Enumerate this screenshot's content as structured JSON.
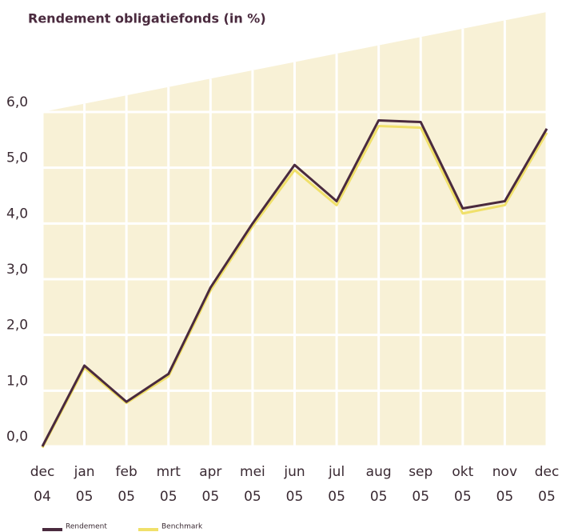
{
  "chart_data": {
    "type": "line",
    "title": "Rendement obligatiefonds (in %)",
    "categories": [
      [
        "dec",
        "04"
      ],
      [
        "jan",
        "05"
      ],
      [
        "feb",
        "05"
      ],
      [
        "mrt",
        "05"
      ],
      [
        "apr",
        "05"
      ],
      [
        "mei",
        "05"
      ],
      [
        "jun",
        "05"
      ],
      [
        "jul",
        "05"
      ],
      [
        "aug",
        "05"
      ],
      [
        "sep",
        "05"
      ],
      [
        "okt",
        "05"
      ],
      [
        "nov",
        "05"
      ],
      [
        "dec",
        "05"
      ]
    ],
    "series": [
      {
        "name": "Benchmark",
        "color": "#f0e06a",
        "values": [
          0,
          1.43,
          0.8,
          1.28,
          2.82,
          3.97,
          4.98,
          4.35,
          5.77,
          5.74,
          4.2,
          4.35,
          5.65
        ]
      },
      {
        "name": "Rendement",
        "color": "#4a2a3e",
        "values": [
          0,
          1.45,
          0.8,
          1.3,
          2.85,
          4.0,
          5.05,
          4.4,
          5.85,
          5.82,
          4.27,
          4.4,
          5.7
        ]
      }
    ],
    "ylim": [
      0,
      6
    ],
    "yticks": [
      {
        "value": 0,
        "label": "0,0"
      },
      {
        "value": 1,
        "label": "1,0"
      },
      {
        "value": 2,
        "label": "2,0"
      },
      {
        "value": 3,
        "label": "3,0"
      },
      {
        "value": 4,
        "label": "4,0"
      },
      {
        "value": 5,
        "label": "5,0"
      },
      {
        "value": 6,
        "label": "6,0"
      }
    ],
    "grid": true
  }
}
